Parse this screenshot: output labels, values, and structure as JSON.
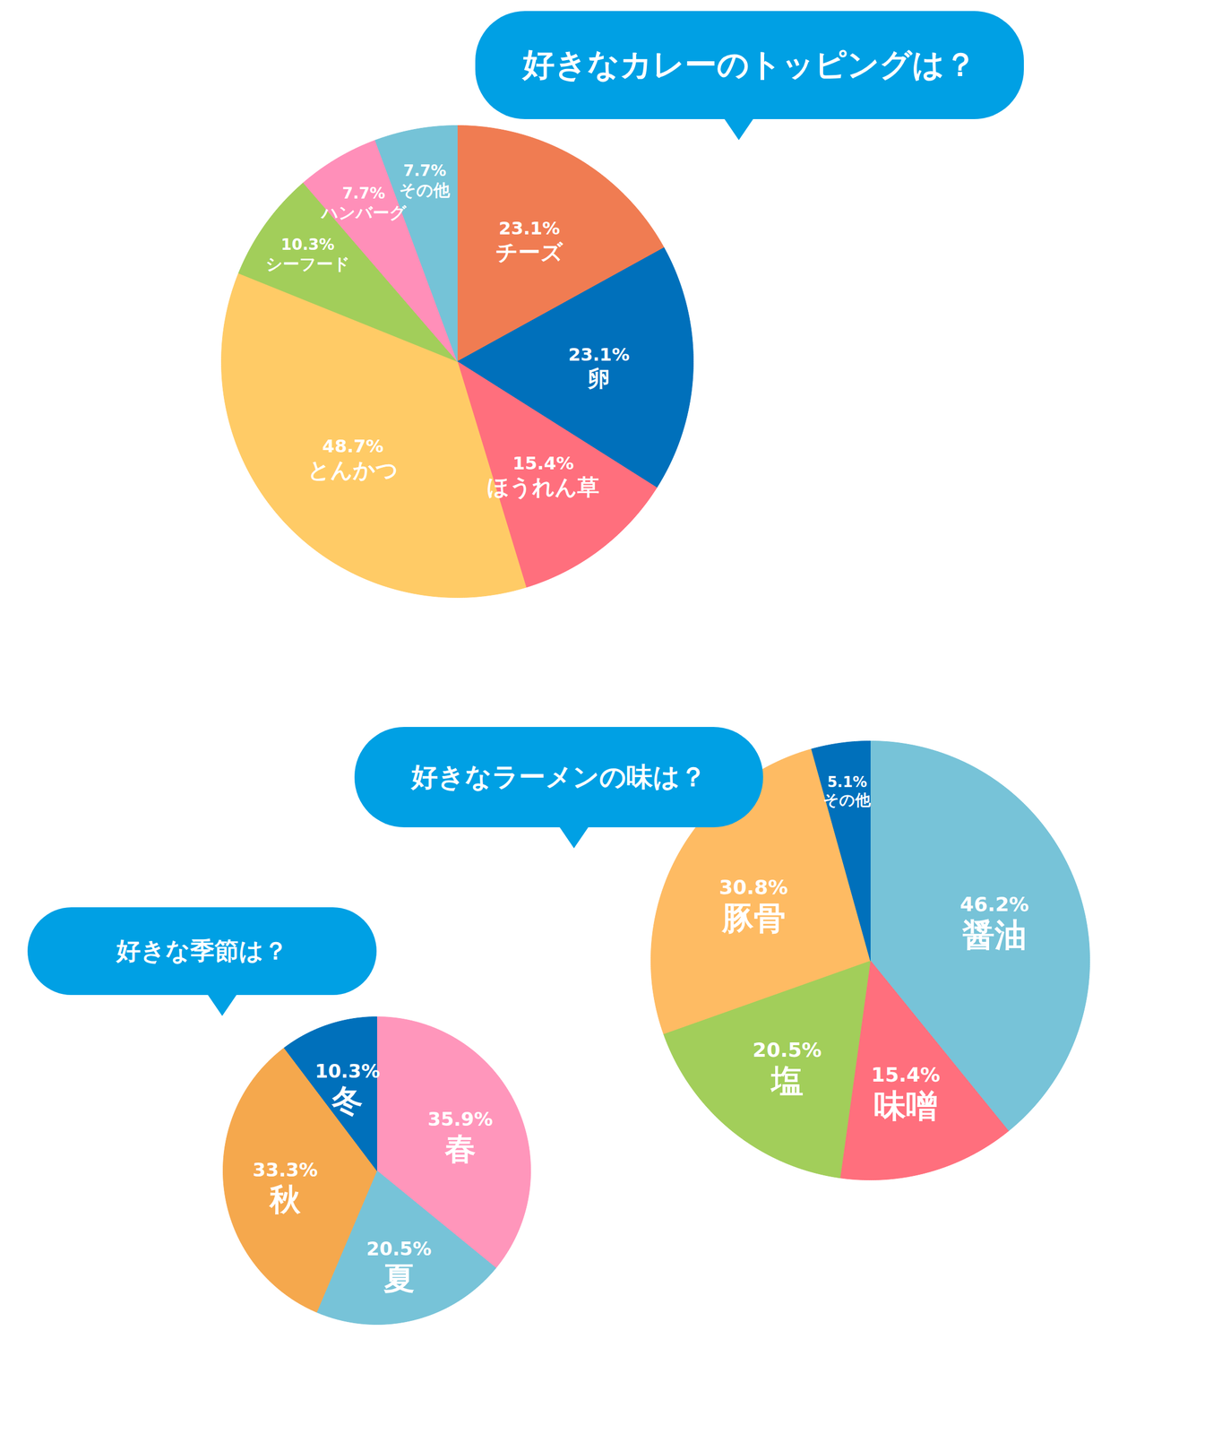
{
  "chart_data": [
    {
      "type": "pie",
      "title": "好きなカレーのトッピングは？",
      "categories": [
        "チーズ",
        "卵",
        "ほうれん草",
        "とんかつ",
        "シーフード",
        "ハンバーグ",
        "その他"
      ],
      "values": [
        23.1,
        23.1,
        15.4,
        48.7,
        10.3,
        7.7,
        7.7
      ],
      "value_labels": [
        "23.1%",
        "23.1%",
        "15.4%",
        "48.7%",
        "10.3%",
        "7.7%",
        "7.7%"
      ],
      "colors": [
        "#F07C52",
        "#0070BB",
        "#FF6F7D",
        "#FFCB66",
        "#A2CE5A",
        "#FF8FB9",
        "#75C3D7"
      ],
      "data_labels": true
    },
    {
      "type": "pie",
      "title": "好きなラーメンの味は？",
      "categories": [
        "醤油",
        "味噌",
        "塩",
        "豚骨",
        "その他"
      ],
      "values": [
        46.2,
        15.4,
        20.5,
        30.8,
        5.1
      ],
      "value_labels": [
        "46.2%",
        "15.4%",
        "20.5%",
        "30.8%",
        "5.1%"
      ],
      "colors": [
        "#77C3D8",
        "#FF6F7D",
        "#A2CE5A",
        "#FEBB63",
        "#0070BB"
      ],
      "data_labels": true
    },
    {
      "type": "pie",
      "title": "好きな季節は？",
      "categories": [
        "春",
        "夏",
        "秋",
        "冬"
      ],
      "values": [
        35.9,
        20.5,
        33.3,
        10.3
      ],
      "value_labels": [
        "35.9%",
        "20.5%",
        "33.3%",
        "10.3%"
      ],
      "colors": [
        "#FF96BB",
        "#77C3D8",
        "#F5A84D",
        "#0070BB"
      ],
      "data_labels": true
    }
  ]
}
